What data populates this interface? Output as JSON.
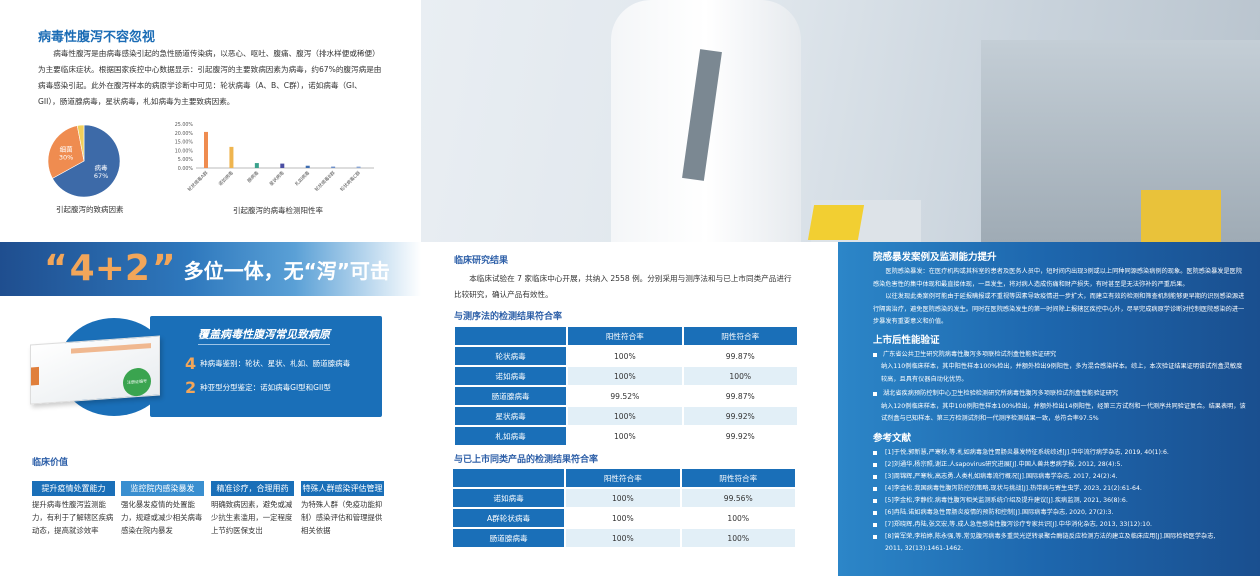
{
  "intro": {
    "title": "病毒性腹泻不容忽视",
    "body": "病毒性腹泻是由病毒感染引起的急性肠道传染病，以恶心、呕吐、腹痛、腹泻（排水样便或稀便）为主要临床症状。根据国家疾控中心数据显示：引起腹泻的主要致病因素为病毒，约67%的腹泻病是由病毒感染引起。此外在腹泻样本的病原学诊断中可见：轮状病毒（A、B、C群），诺如病毒（GI、GII），肠道腺病毒，星状病毒，札如病毒为主要致病因素。"
  },
  "chart_data": [
    {
      "type": "pie",
      "title": "引起腹泻的致病因素",
      "slices": [
        {
          "label": "病毒",
          "value": 67,
          "color": "#3d6aa8"
        },
        {
          "label": "细菌",
          "value": 30,
          "color": "#ef8c50"
        },
        {
          "label": "其他",
          "value": 3,
          "color": "#f1cf5a"
        }
      ]
    },
    {
      "type": "bar",
      "title": "引起腹泻的病毒检测阳性率",
      "categories": [
        "轮状病毒A群",
        "诺如病毒",
        "腺病毒",
        "星状病毒",
        "札如病毒",
        "轮状病毒B群",
        "轮状病毒C群"
      ],
      "values": [
        20.5,
        12.0,
        2.8,
        2.5,
        1.3,
        0.8,
        0.8
      ],
      "colors": [
        "#ef8c50",
        "#efb54f",
        "#3aa18c",
        "#4b4ea3",
        "#3e6db0",
        "#6d8fc9",
        "#8aa6d4"
      ],
      "ylim": [
        0,
        25
      ],
      "yticks": [
        "0.00%",
        "5.00%",
        "10.00%",
        "15.00%",
        "20.00%",
        "25.00%"
      ],
      "grid": false
    }
  ],
  "banner": {
    "q_open": "“",
    "num": "4+2",
    "q_close": "”",
    "text": "多位一体，无“泻”可击"
  },
  "product": {
    "title": "覆盖病毒性腹泻常见致病原",
    "items": [
      {
        "num": "4",
        "text": "种病毒鉴别：轮状、星状、札如、肠道腺病毒"
      },
      {
        "num": "2",
        "text": "种亚型分型鉴定：诺如病毒GI型和GII型"
      }
    ],
    "stamp": "注册证编号"
  },
  "value": {
    "title": "临床价值",
    "items": [
      {
        "label": "提升疫情处置能力",
        "text": "提升病毒性腹泻监测能力，有利于了解辖区疾病动态，提高就诊效率"
      },
      {
        "label": "监控院内感染暴发",
        "text": "强化暴发疫情的处置能力，规避或减少相关病毒感染在院内暴发"
      },
      {
        "label": "精准诊疗，合理用药",
        "text": "明确致病因素，避免或减少抗生素滥用，一定程度上节约医保支出"
      },
      {
        "label": "特殊人群感染评估管理",
        "text": "为特殊人群（免疫功能抑制）感染评估和管理提供相关依据"
      }
    ]
  },
  "clinical": {
    "title": "临床研究结果",
    "body": "本临床试验在 7 家临床中心开展，共纳入 2558 例。分别采用与测序法和与已上市同类产品进行比较研究，确认产品有效性。",
    "table1": {
      "title": "与测序法的检测结果符合率",
      "headers": [
        "",
        "阳性符合率",
        "阴性符合率"
      ],
      "rows": [
        [
          "轮状病毒",
          "100%",
          "99.87%"
        ],
        [
          "诺如病毒",
          "100%",
          "100%"
        ],
        [
          "肠道腺病毒",
          "99.52%",
          "99.87%"
        ],
        [
          "星状病毒",
          "100%",
          "99.92%"
        ],
        [
          "札如病毒",
          "100%",
          "99.92%"
        ]
      ]
    },
    "table2": {
      "title": "与已上市同类产品的检测结果符合率",
      "headers": [
        "",
        "阳性符合率",
        "阴性符合率"
      ],
      "rows": [
        [
          "诺如病毒",
          "100%",
          "99.56%"
        ],
        [
          "A群轮状病毒",
          "100%",
          "100%"
        ],
        [
          "肠道腺病毒",
          "100%",
          "100%"
        ]
      ]
    }
  },
  "right": {
    "outbreak_title": "院感暴发案例及监测能力提升",
    "outbreak_p1": "医院感染暴发：在医疗机构或其科室的患者及医务人员中，短时间内出现3例或以上同种同源感染病例的现象。医院感染暴发是医院感染危害性的集中体现和最直接体现，一旦发生，将对病人造成伤痛和财产损失，有时甚至是无法弥补的严重后果。",
    "outbreak_p2": "以往发现此类案例可能由于延报瞒报或不重视等因素导致疫情进一步扩大，而建立有效的检测和筛查机制能够更早期的识别感染源进行隔离治疗，避免医院感染的发生。同时在医院感染发生的第一时间除上报辖区疾控中心外，尽早完成病原学诊断对控制医院感染的进一步暴发有重要意义和价值。",
    "verify_title": "上市后性能验证",
    "verify": [
      {
        "title": "广东省公共卫生研究院病毒性腹泻多项联检试剂盒性能验证研究",
        "text": "纳入110例临床样本，其中阳性样本100%检出，并额外检出9例阳性，多为混合感染样本。综上，本次验证结果证明该试剂盒灵敏度较高，且具有仪器自动化优势。"
      },
      {
        "title": "湖北省疾病预防控制中心卫生检验检测研究所病毒性腹泻多项联检试剂盒性能验证研究",
        "text": "纳入120例临床样本，其中100例阳性样本100%检出，并额外检出14例阳性，经第三方试剂和一代测序共同验证复合。结果表明，该试剂盒与已知样本、第三方检测试剂和一代测序检测结果一致，总符合率97.5%"
      }
    ],
    "ref_title": "参考文献",
    "refs": [
      "[1]于悦,郭新慧,严寒秋,等.札如病毒急性胃肠炎暴发特征系统综述[J].中华流行病学杂志, 2019, 40(1):6.",
      "[2]刘通华,杨宗照,谢正.人sapovirus研究进展[J].中国人兽共患病学报, 2012, 28(4):5.",
      "[3]周锦辉,严寒秋,高志勇.人类札如病毒流行概况[J].国际病毒学杂志, 2017, 24(2):4.",
      "[4]李金松.我国病毒性腹泻防控的策略,现状与挑战[J].热带病与寄生虫学, 2023, 21(2):61-64.",
      "[5]李金松,李静欣.病毒性腹泻相关监测系统介绍及提升建议[J].疾病监测, 2021, 36(8):6.",
      "[6]冉陆.诺如病毒急性胃肠炎疫情的预防和控制[J].国际病毒学杂志, 2020, 27(2):3.",
      "[7]郑晓辉,冉陆,张文宏,等.成人急性感染性腹泻诊疗专家共识[J].中华消化杂志, 2013, 33(12):10.",
      "[8]曾军荣,李柏婷,陈永强,等.常见腹泻病毒多重荧光逆转录聚合酶链反应检测方法的建立及临床应用[J].国际检验医学杂志, 2011, 32(13):1461-1462."
    ]
  }
}
